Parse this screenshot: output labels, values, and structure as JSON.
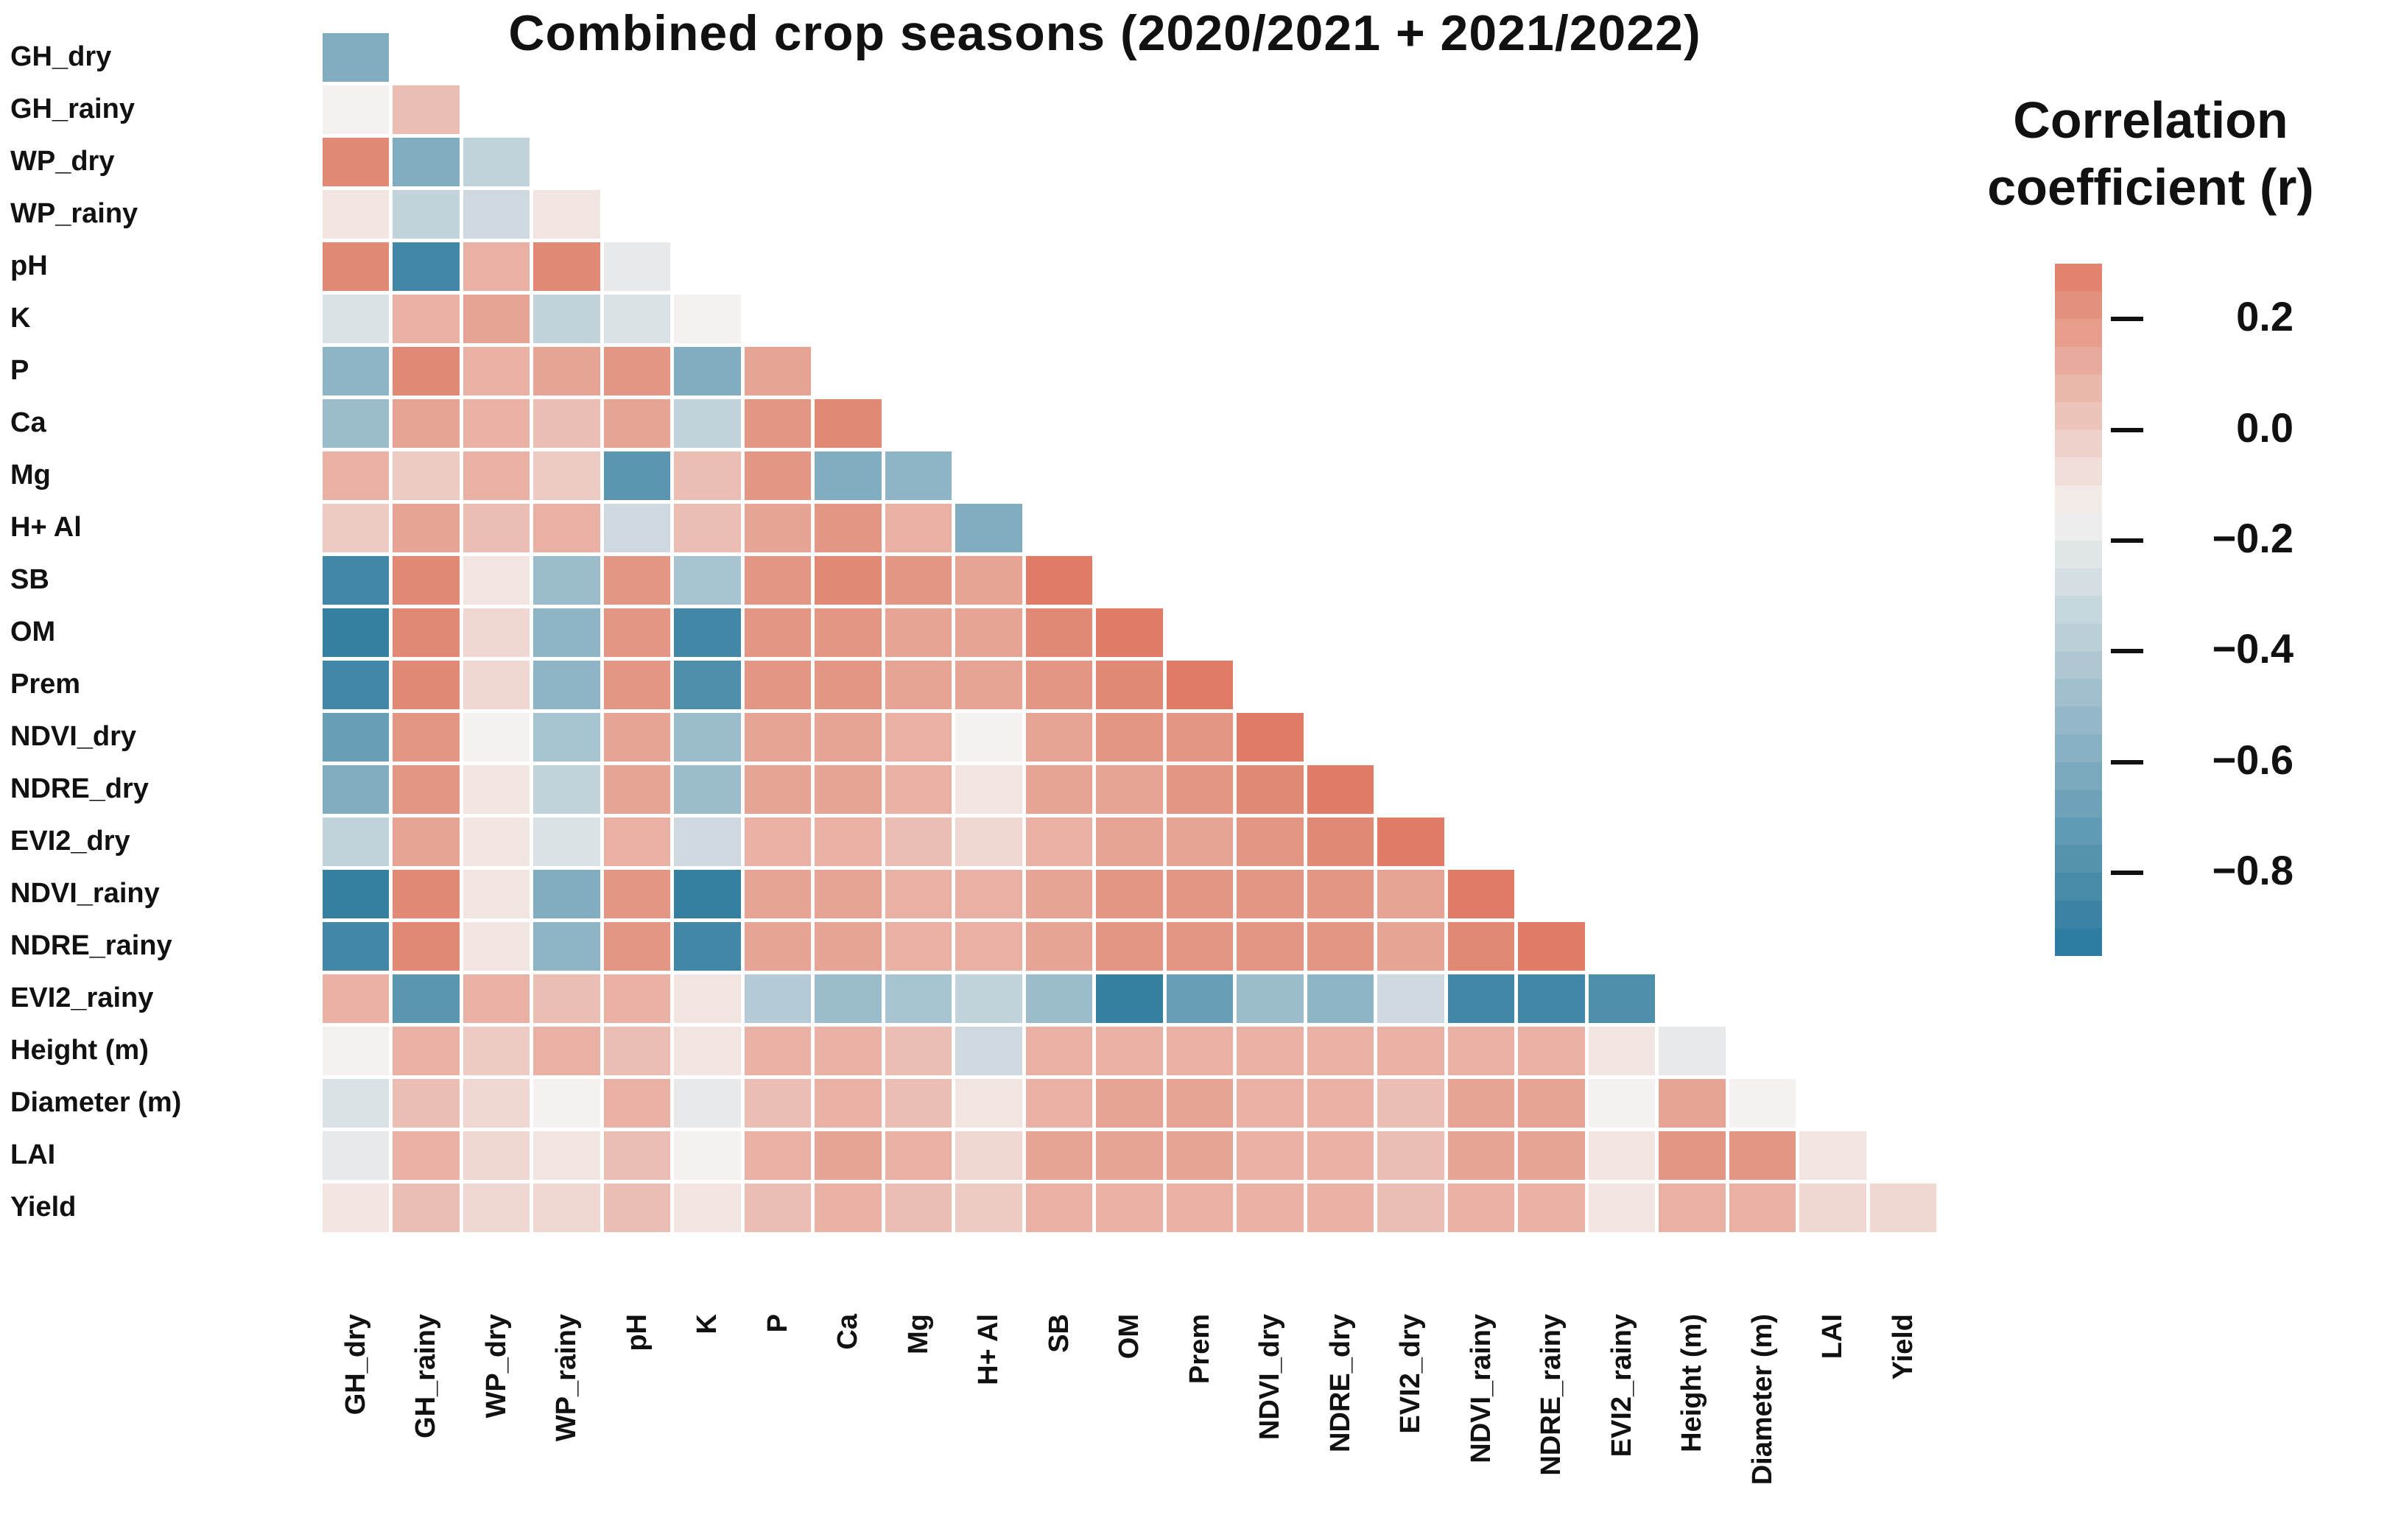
{
  "title": "Combined crop seasons (2020/2021 + 2021/2022)",
  "legend": {
    "title_line1": "Correlation",
    "title_line2": "coefficient (r)",
    "ticks": [
      {
        "value": 0.2,
        "label": "0.2"
      },
      {
        "value": 0.0,
        "label": "0.0"
      },
      {
        "value": -0.2,
        "label": "−0.2"
      },
      {
        "value": -0.4,
        "label": "−0.4"
      },
      {
        "value": -0.6,
        "label": "−0.6"
      },
      {
        "value": -0.8,
        "label": "−0.8"
      }
    ]
  },
  "chart_data": {
    "type": "heatmap",
    "title": "Combined crop seasons (2020/2021 + 2021/2022)",
    "legend_title": "Correlation coefficient (r)",
    "legend_ticks": [
      0.2,
      0.0,
      -0.2,
      -0.4,
      -0.6,
      -0.8
    ],
    "layout": "lower-triangle correlation matrix, row i has i cells; values estimated from color scale",
    "scale": {
      "vmin": -0.95,
      "vmax": 0.3,
      "center": -0.15,
      "color_positive": "#e07c66",
      "color_center": "#f4f1f0",
      "color_negative": "#28789c"
    },
    "variables": [
      "GH_dry",
      "GH_rainy",
      "WP_dry",
      "WP_rainy",
      "pH",
      "K",
      "P",
      "Ca",
      "Mg",
      "H+ Al",
      "SB",
      "OM",
      "Prem",
      "NDVI_dry",
      "NDRE_dry",
      "EVI2_dry",
      "NDVI_rainy",
      "NDRE_rainy",
      "EVI2_rainy",
      "Height (m)",
      "Diameter (m)",
      "LAI",
      "Yield"
    ],
    "matrix_lower_triangle": [
      [
        -0.6
      ],
      [
        -0.15,
        0.05
      ],
      [
        0.25,
        -0.6,
        -0.35
      ],
      [
        -0.1,
        -0.35,
        -0.3,
        -0.1
      ],
      [
        0.25,
        -0.85,
        0.1,
        0.25,
        -0.2
      ],
      [
        -0.25,
        0.1,
        0.15,
        -0.35,
        -0.25,
        -0.15
      ],
      [
        -0.55,
        0.25,
        0.1,
        0.15,
        0.2,
        -0.6,
        0.15
      ],
      [
        -0.5,
        0.15,
        0.1,
        0.05,
        0.15,
        -0.35,
        0.2,
        0.25
      ],
      [
        0.1,
        0.0,
        0.1,
        0.0,
        -0.75,
        0.05,
        0.2,
        -0.6,
        -0.55
      ],
      [
        0.0,
        0.15,
        0.05,
        0.1,
        -0.3,
        0.05,
        0.15,
        0.2,
        0.1,
        -0.6
      ],
      [
        -0.85,
        0.25,
        -0.1,
        -0.5,
        0.2,
        -0.45,
        0.2,
        0.25,
        0.2,
        0.15,
        0.3
      ],
      [
        -0.9,
        0.25,
        -0.05,
        -0.55,
        0.2,
        -0.85,
        0.2,
        0.2,
        0.15,
        0.15,
        0.25,
        0.3
      ],
      [
        -0.85,
        0.25,
        -0.05,
        -0.55,
        0.2,
        -0.8,
        0.2,
        0.2,
        0.15,
        0.15,
        0.2,
        0.25,
        0.3
      ],
      [
        -0.7,
        0.2,
        -0.15,
        -0.45,
        0.15,
        -0.5,
        0.15,
        0.15,
        0.1,
        -0.15,
        0.15,
        0.2,
        0.2,
        0.3
      ],
      [
        -0.6,
        0.2,
        -0.1,
        -0.35,
        0.15,
        -0.5,
        0.15,
        0.15,
        0.1,
        -0.1,
        0.15,
        0.15,
        0.2,
        0.25,
        0.3
      ],
      [
        -0.35,
        0.15,
        -0.1,
        -0.25,
        0.1,
        -0.3,
        0.1,
        0.1,
        0.05,
        -0.05,
        0.1,
        0.15,
        0.15,
        0.2,
        0.25,
        0.3
      ],
      [
        -0.9,
        0.25,
        -0.1,
        -0.6,
        0.2,
        -0.9,
        0.15,
        0.15,
        0.1,
        0.1,
        0.15,
        0.2,
        0.2,
        0.2,
        0.2,
        0.15,
        0.3
      ],
      [
        -0.85,
        0.25,
        -0.1,
        -0.55,
        0.2,
        -0.85,
        0.15,
        0.15,
        0.1,
        0.1,
        0.15,
        0.2,
        0.2,
        0.2,
        0.2,
        0.15,
        0.25,
        0.3
      ],
      [
        0.1,
        -0.75,
        0.1,
        0.05,
        0.1,
        -0.1,
        -0.4,
        -0.5,
        -0.45,
        -0.35,
        -0.5,
        -0.9,
        -0.7,
        -0.5,
        -0.55,
        -0.3,
        -0.85,
        -0.85,
        -0.8
      ],
      [
        -0.15,
        0.1,
        0.0,
        0.1,
        0.05,
        -0.1,
        0.1,
        0.1,
        0.05,
        -0.3,
        0.1,
        0.1,
        0.1,
        0.1,
        0.1,
        0.1,
        0.1,
        0.1,
        -0.1,
        -0.2
      ],
      [
        -0.25,
        0.05,
        -0.05,
        -0.15,
        0.1,
        -0.2,
        0.05,
        0.1,
        0.05,
        -0.1,
        0.1,
        0.15,
        0.15,
        0.1,
        0.1,
        0.05,
        0.15,
        0.15,
        -0.15,
        0.15,
        -0.15
      ],
      [
        -0.2,
        0.1,
        -0.05,
        -0.1,
        0.05,
        -0.15,
        0.1,
        0.15,
        0.1,
        -0.05,
        0.15,
        0.15,
        0.15,
        0.1,
        0.1,
        0.05,
        0.15,
        0.15,
        -0.1,
        0.2,
        0.2,
        -0.1
      ],
      [
        -0.1,
        0.05,
        -0.05,
        -0.05,
        0.05,
        -0.1,
        0.05,
        0.1,
        0.05,
        0.0,
        0.1,
        0.1,
        0.1,
        0.1,
        0.1,
        0.05,
        0.1,
        0.1,
        -0.1,
        0.1,
        0.1,
        -0.05,
        -0.05
      ]
    ]
  }
}
